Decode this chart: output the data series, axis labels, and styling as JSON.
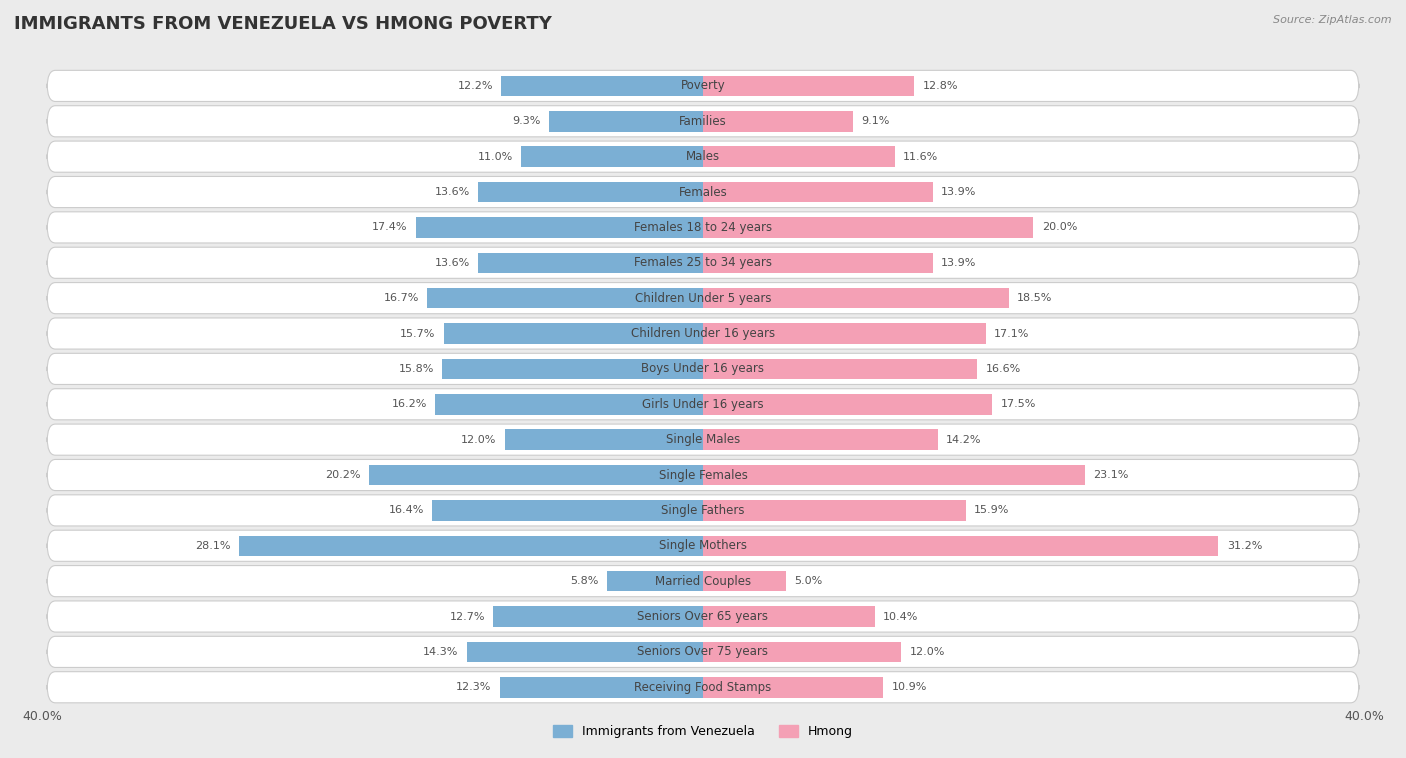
{
  "title": "IMMIGRANTS FROM VENEZUELA VS HMONG POVERTY",
  "source": "Source: ZipAtlas.com",
  "categories": [
    "Poverty",
    "Families",
    "Males",
    "Females",
    "Females 18 to 24 years",
    "Females 25 to 34 years",
    "Children Under 5 years",
    "Children Under 16 years",
    "Boys Under 16 years",
    "Girls Under 16 years",
    "Single Males",
    "Single Females",
    "Single Fathers",
    "Single Mothers",
    "Married Couples",
    "Seniors Over 65 years",
    "Seniors Over 75 years",
    "Receiving Food Stamps"
  ],
  "venezuela_values": [
    12.2,
    9.3,
    11.0,
    13.6,
    17.4,
    13.6,
    16.7,
    15.7,
    15.8,
    16.2,
    12.0,
    20.2,
    16.4,
    28.1,
    5.8,
    12.7,
    14.3,
    12.3
  ],
  "hmong_values": [
    12.8,
    9.1,
    11.6,
    13.9,
    20.0,
    13.9,
    18.5,
    17.1,
    16.6,
    17.5,
    14.2,
    23.1,
    15.9,
    31.2,
    5.0,
    10.4,
    12.0,
    10.9
  ],
  "venezuela_color": "#7bafd4",
  "hmong_color": "#f4a0b5",
  "venezuela_label": "Immigrants from Venezuela",
  "hmong_label": "Hmong",
  "xlim": 40.0,
  "background_color": "#ebebeb",
  "row_color": "#ffffff",
  "title_fontsize": 13,
  "label_fontsize": 8.5,
  "value_fontsize": 8.0,
  "axis_label_fontsize": 9
}
